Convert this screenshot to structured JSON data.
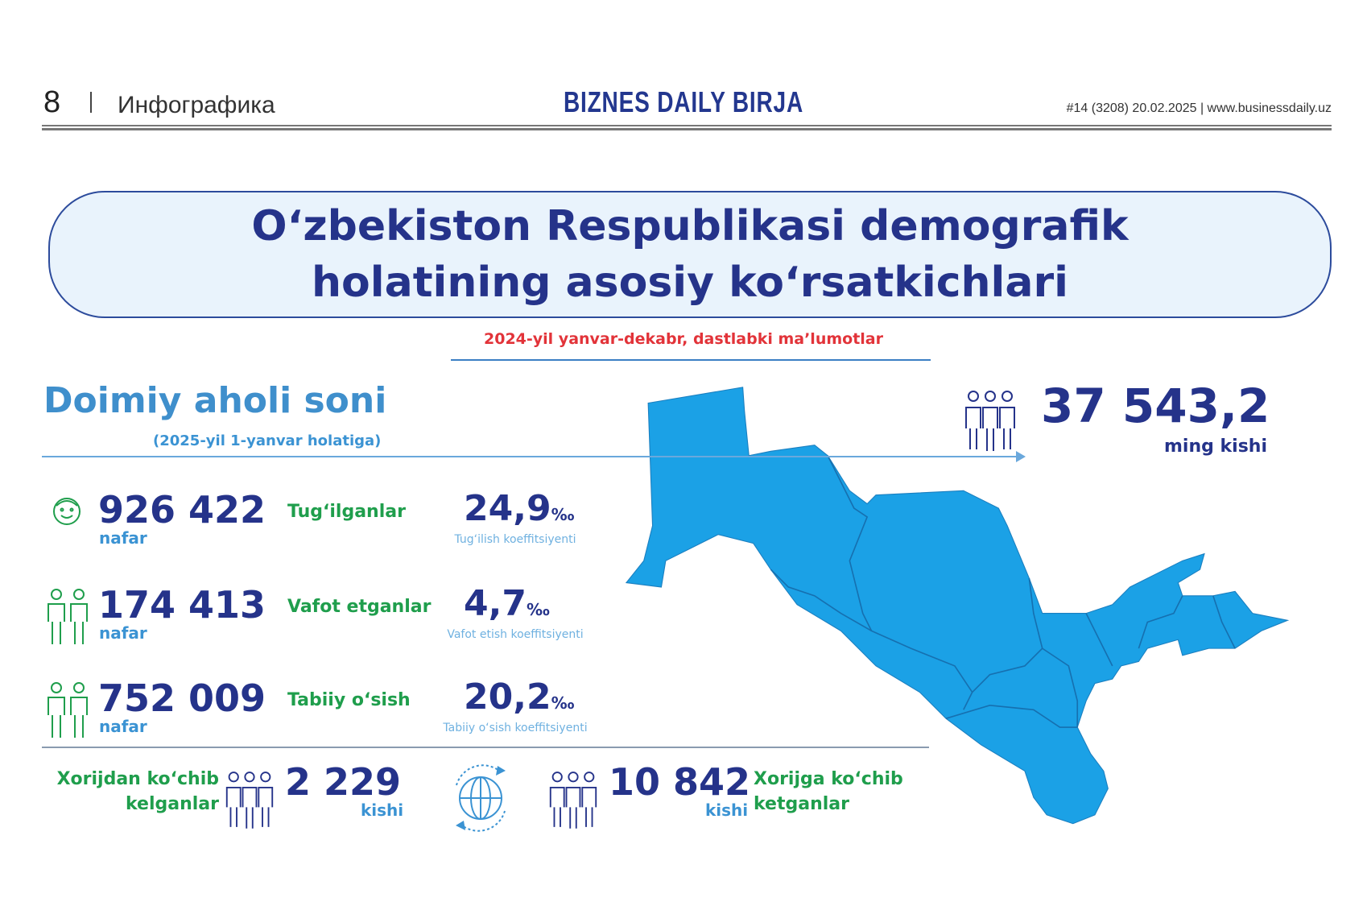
{
  "header": {
    "page_number": "8",
    "section": "Инфографика",
    "brand": "BIZNES DAILY BIRJA",
    "issue": "#14 (3208) 20.02.2025 | www.businessdaily.uz"
  },
  "title": {
    "line1": "O‘zbekiston Respublikasi demografik",
    "line2": "holatining asosiy ko‘rsatkichlari",
    "subtitle": "2024-yil yanvar-dekabr, dastlabki ma’lumotlar"
  },
  "population": {
    "heading": "Doimiy aholi soni",
    "subheading": "(2025-yil 1-yanvar holatiga)",
    "value": "37 543,2",
    "unit": "ming kishi"
  },
  "rows": [
    {
      "value": "926 422",
      "unit": "nafar",
      "label": "Tug‘ilganlar",
      "coef": "24,9",
      "coef_unit": "‰",
      "coef_label": "Tug‘ilish koeffitsiyenti",
      "icon": "baby-face-icon"
    },
    {
      "value": "174 413",
      "unit": "nafar",
      "label": "Vafot etganlar",
      "coef": "4,7",
      "coef_unit": "‰",
      "coef_label": "Vafot etish koeffitsiyenti",
      "icon": "two-people-icon"
    },
    {
      "value": "752 009",
      "unit": "nafar",
      "label": "Tabiiy o‘sish",
      "coef": "20,2",
      "coef_unit": "‰",
      "coef_label": "Tabiiy o‘sish koeffitsiyenti",
      "icon": "two-people-icon"
    }
  ],
  "migration": {
    "in_label1": "Xorijdan ko‘chib",
    "in_label2": "kelganlar",
    "in_value": "2 229",
    "in_unit": "kishi",
    "out_label1": "Xorijga ko‘chib",
    "out_label2": "ketganlar",
    "out_value": "10 842",
    "out_unit": "kishi"
  },
  "colors": {
    "navy": "#25338a",
    "green": "#1f9e4c",
    "light_blue": "#3b93d3",
    "map": "#1ba1e6",
    "accent_red": "#e23339"
  }
}
